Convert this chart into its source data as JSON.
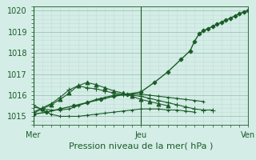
{
  "bg_color": "#d4ede6",
  "grid_color_major": "#a8c8be",
  "grid_color_minor": "#c0dcd6",
  "line_color": "#1a5c28",
  "xlabel": "Pression niveau de la mer( hPa )",
  "xlabel_fontsize": 8,
  "tick_fontsize": 7,
  "yticks": [
    1015,
    1016,
    1017,
    1018,
    1019,
    1020
  ],
  "ylim": [
    1014.6,
    1020.2
  ],
  "xlim": [
    0,
    48
  ],
  "xtick_labels": [
    "Mer",
    "Jeu",
    "Ven"
  ],
  "xtick_positions": [
    0,
    24,
    48
  ],
  "series": [
    {
      "x": [
        0,
        3,
        6,
        9,
        12,
        15,
        18,
        21,
        24,
        27,
        30,
        33,
        35,
        36,
        37,
        38,
        39,
        40,
        41,
        42,
        43,
        44,
        45,
        46,
        47,
        48
      ],
      "y": [
        1015.1,
        1015.2,
        1015.35,
        1015.5,
        1015.65,
        1015.8,
        1015.95,
        1016.05,
        1016.15,
        1016.6,
        1017.1,
        1017.7,
        1018.1,
        1018.55,
        1018.9,
        1019.05,
        1019.15,
        1019.25,
        1019.35,
        1019.45,
        1019.55,
        1019.65,
        1019.75,
        1019.85,
        1019.95,
        1020.0
      ],
      "marker": "D",
      "markersize": 2.5,
      "linewidth": 1.0
    },
    {
      "x": [
        0,
        2,
        4,
        6,
        8,
        10,
        12,
        14,
        16,
        18,
        20,
        22,
        24,
        26,
        28,
        30,
        32,
        34,
        36,
        38,
        40
      ],
      "y": [
        1015.2,
        1015.4,
        1015.6,
        1015.9,
        1016.25,
        1016.45,
        1016.35,
        1016.3,
        1016.2,
        1016.1,
        1016.05,
        1016.0,
        1015.95,
        1015.85,
        1015.75,
        1015.65,
        1015.55,
        1015.45,
        1015.35,
        1015.3,
        1015.3
      ],
      "marker": "+",
      "markersize": 4,
      "linewidth": 0.8
    },
    {
      "x": [
        0,
        2,
        4,
        6,
        8,
        10,
        12,
        14,
        16,
        18,
        20,
        22,
        24,
        26,
        28,
        30
      ],
      "y": [
        1015.15,
        1015.35,
        1015.55,
        1015.8,
        1016.1,
        1016.45,
        1016.6,
        1016.5,
        1016.35,
        1016.2,
        1016.1,
        1015.95,
        1015.8,
        1015.7,
        1015.6,
        1015.5
      ],
      "marker": "^",
      "markersize": 3.5,
      "linewidth": 0.8
    },
    {
      "x": [
        0,
        2,
        4,
        6,
        8,
        10,
        12,
        14,
        16,
        18,
        20,
        22,
        24,
        26,
        28,
        30,
        32,
        34,
        36,
        38
      ],
      "y": [
        1015.45,
        1015.35,
        1015.3,
        1015.3,
        1015.35,
        1015.5,
        1015.65,
        1015.8,
        1015.9,
        1016.0,
        1016.05,
        1016.05,
        1016.05,
        1016.0,
        1015.95,
        1015.9,
        1015.85,
        1015.8,
        1015.75,
        1015.7
      ],
      "marker": "+",
      "markersize": 3,
      "linewidth": 0.8
    },
    {
      "x": [
        0,
        2,
        4,
        6,
        8,
        10,
        12,
        14,
        16,
        18,
        20,
        22,
        24,
        26,
        28,
        30,
        32,
        34,
        36
      ],
      "y": [
        1015.55,
        1015.3,
        1015.1,
        1015.0,
        1015.0,
        1015.0,
        1015.05,
        1015.1,
        1015.15,
        1015.2,
        1015.25,
        1015.3,
        1015.35,
        1015.35,
        1015.35,
        1015.3,
        1015.3,
        1015.25,
        1015.2
      ],
      "marker": "+",
      "markersize": 3,
      "linewidth": 0.8
    }
  ]
}
